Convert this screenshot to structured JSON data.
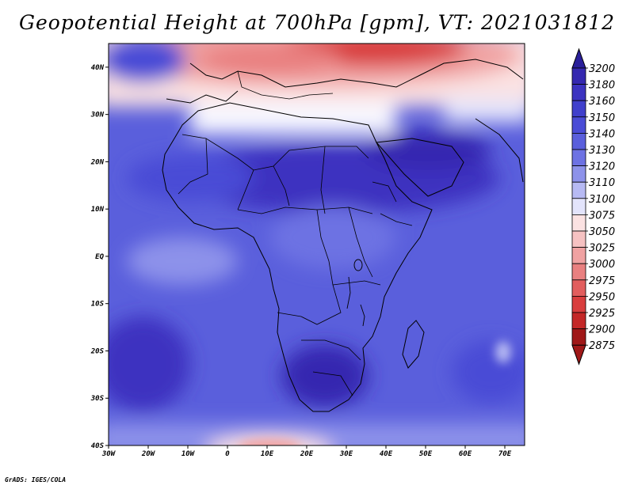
{
  "title": "Geopotential Height at 700hPa [gpm], VT: 2021031812",
  "credit": "GrADS: IGES/COLA",
  "map": {
    "projection": "latlon",
    "lon_range": [
      -30,
      75
    ],
    "lat_range": [
      -40,
      45
    ],
    "lat_ticks": [
      "40N",
      "30N",
      "20N",
      "10N",
      "EQ",
      "10S",
      "20S",
      "30S",
      "40S"
    ],
    "lon_ticks": [
      "30W",
      "20W",
      "10W",
      "0",
      "10E",
      "20E",
      "30E",
      "40E",
      "50E",
      "60E",
      "70E"
    ]
  },
  "colorbar": {
    "levels": [
      "3200",
      "3180",
      "3160",
      "3150",
      "3140",
      "3130",
      "3120",
      "3110",
      "3100",
      "3075",
      "3050",
      "3025",
      "3000",
      "2975",
      "2950",
      "2925",
      "2900",
      "2875"
    ],
    "colors": [
      "#2a1f9a",
      "#3528b0",
      "#3c33c0",
      "#4040cc",
      "#4a4cd6",
      "#5a5fdc",
      "#6d72e3",
      "#8d92ea",
      "#b7baf3",
      "#e3e4fb",
      "#fbe2e2",
      "#f6c2c2",
      "#f0a2a2",
      "#e98080",
      "#e25e5e",
      "#d93e3e",
      "#c42828",
      "#a01818"
    ]
  }
}
